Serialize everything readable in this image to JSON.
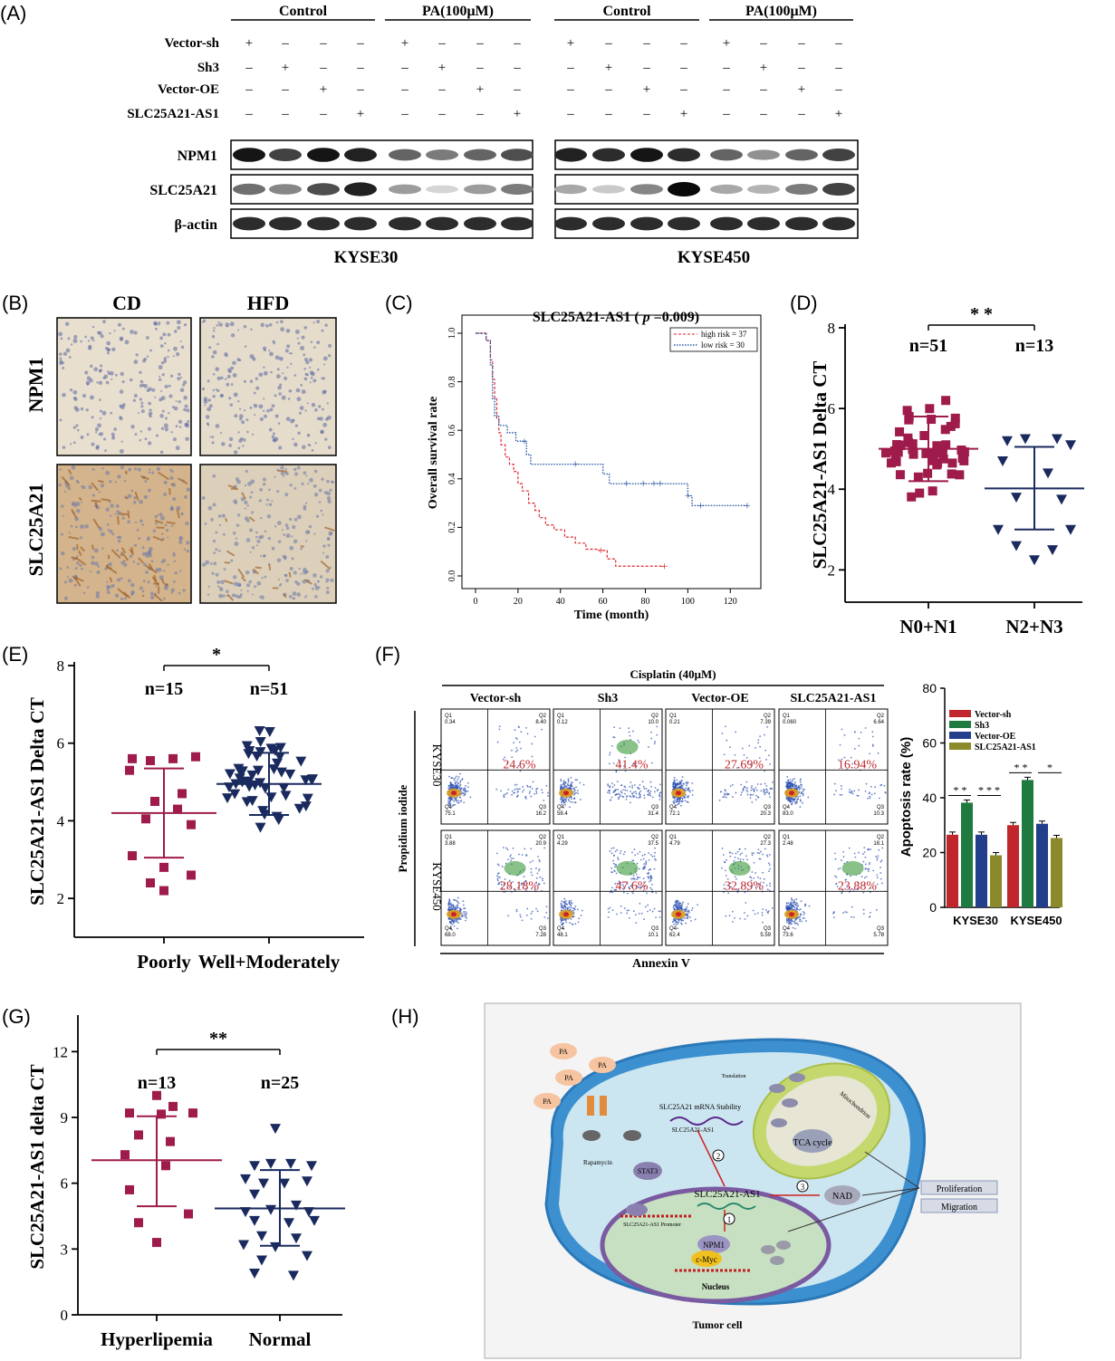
{
  "colors": {
    "red": "#9e1b4b",
    "navy": "#1a2a5e",
    "km_red": "#e0242b",
    "km_blue": "#2c5ca8",
    "bar_red": "#c0272d",
    "bar_green": "#1f7a3f",
    "bar_blue": "#233e8b",
    "bar_olive": "#8a8a2a"
  },
  "panel_labels": [
    "(A)",
    "(B)",
    "(C)",
    "(D)",
    "(E)",
    "(F)",
    "(G)",
    "(H)"
  ],
  "panelA": {
    "groups": [
      "Control",
      "PA(100μM)",
      "Control",
      "PA(100μM)"
    ],
    "rows": [
      {
        "label": "Vector-sh",
        "signs": [
          "+",
          "–",
          "–",
          "–",
          "+",
          "–",
          "–",
          "–",
          "+",
          "–",
          "–",
          "–",
          "+",
          "–",
          "–",
          "–"
        ]
      },
      {
        "label": "Sh3",
        "signs": [
          "–",
          "+",
          "–",
          "–",
          "–",
          "+",
          "–",
          "–",
          "–",
          "+",
          "–",
          "–",
          "–",
          "+",
          "–",
          "–"
        ]
      },
      {
        "label": "Vector-OE",
        "signs": [
          "–",
          "–",
          "+",
          "–",
          "–",
          "–",
          "+",
          "–",
          "–",
          "–",
          "+",
          "–",
          "–",
          "–",
          "+",
          "–"
        ]
      },
      {
        "label": "SLC25A21-AS1",
        "signs": [
          "–",
          "–",
          "–",
          "+",
          "–",
          "–",
          "–",
          "+",
          "–",
          "–",
          "–",
          "+",
          "–",
          "–",
          "–",
          "+"
        ]
      }
    ],
    "blots": [
      {
        "label": "NPM1",
        "intensity": [
          0.95,
          0.75,
          0.95,
          0.9,
          0.6,
          0.5,
          0.6,
          0.7,
          0.9,
          0.85,
          0.95,
          0.85,
          0.6,
          0.4,
          0.6,
          0.75
        ]
      },
      {
        "label": "SLC25A21",
        "intensity": [
          0.55,
          0.45,
          0.7,
          0.9,
          0.35,
          0.1,
          0.35,
          0.5,
          0.3,
          0.15,
          0.45,
          1.0,
          0.3,
          0.25,
          0.5,
          0.75
        ]
      },
      {
        "label": "β-actin",
        "intensity": [
          0.85,
          0.85,
          0.85,
          0.85,
          0.85,
          0.85,
          0.85,
          0.85,
          0.85,
          0.85,
          0.85,
          0.85,
          0.85,
          0.85,
          0.85,
          0.85
        ]
      }
    ],
    "cell_lines": [
      "KYSE30",
      "KYSE450"
    ]
  },
  "panelB": {
    "cols": [
      "CD",
      "HFD"
    ],
    "rows": [
      "NPM1",
      "SLC25A21"
    ]
  },
  "panelC": {
    "title_pre": "SLC25A21-AS1 ( ",
    "title_p": "p",
    "title_post": " =0.009)",
    "xlabel": "Time (month)",
    "ylabel": "Overall survival rate",
    "xticks": [
      "0",
      "20",
      "40",
      "60",
      "80",
      "100",
      "120"
    ],
    "yticks": [
      "0.0",
      "0.2",
      "0.4",
      "0.6",
      "0.8",
      "1.0"
    ],
    "legend": [
      "high risk = 37",
      "low risk = 30"
    ]
  },
  "panelD": {
    "ylabel": "SLC25A21-AS1 Delta CT",
    "yticks": [
      "2",
      "4",
      "6",
      "8"
    ],
    "groups": [
      "N0+N1",
      "N2+N3"
    ],
    "n": [
      "n=51",
      "n=13"
    ],
    "sig": "* *",
    "means": [
      5.0,
      4.02
    ],
    "sd_hi": [
      5.8,
      5.05
    ],
    "sd_lo": [
      4.2,
      3.0
    ]
  },
  "panelE": {
    "ylabel": "SLC25A21-AS1 Delta CT",
    "yticks": [
      "2",
      "4",
      "6",
      "8"
    ],
    "groups": [
      "Poorly",
      "Well+Moderately"
    ],
    "n": [
      "n=15",
      "n=51"
    ],
    "sig": "*",
    "means": [
      4.2,
      4.95
    ],
    "sd_hi": [
      5.35,
      5.75
    ],
    "sd_lo": [
      3.05,
      4.15
    ]
  },
  "panelF": {
    "title": "Cisplatin (40μM)",
    "cols": [
      "Vector-sh",
      "Sh3",
      "Vector-OE",
      "SLC25A21-AS1"
    ],
    "rows": [
      "KYSE30",
      "KYSE450"
    ],
    "ylabel": "Propidium iodide",
    "xlabel": "Annexin V",
    "percents": [
      [
        "24.6%",
        "41.4%",
        "27.69%",
        "16.94%"
      ],
      [
        "28.18%",
        "47.6%",
        "32.89%",
        "23.88%"
      ]
    ],
    "quads": [
      [
        [
          "0.34",
          "8.40",
          "75.1",
          "16.2"
        ],
        [
          "0.12",
          "10.0",
          "58.4",
          "31.4"
        ],
        [
          "0.21",
          "7.39",
          "72.1",
          "20.3"
        ],
        [
          "0.060",
          "6.64",
          "83.0",
          "10.3"
        ]
      ],
      [
        [
          "3.88",
          "20.9",
          "68.0",
          "7.28"
        ],
        [
          "4.29",
          "37.5",
          "48.1",
          "10.1"
        ],
        [
          "4.79",
          "27.3",
          "62.4",
          "5.59"
        ],
        [
          "2.48",
          "18.1",
          "73.6",
          "5.78"
        ]
      ]
    ],
    "bar": {
      "ylabel": "Apoptosis rate (%)",
      "yticks": [
        "0",
        "20",
        "40",
        "60",
        "80"
      ],
      "legend": [
        "Vector-sh",
        "Sh3",
        "Vector-OE",
        "SLC25A21-AS1"
      ],
      "categories": [
        "KYSE30",
        "KYSE450"
      ],
      "values": [
        [
          26.5,
          38.2,
          26.5,
          19
        ],
        [
          30,
          46.5,
          30.5,
          25.3
        ]
      ],
      "sig1": [
        "* *",
        "* *"
      ],
      "sig2": [
        "* * *",
        "*"
      ]
    }
  },
  "panelG": {
    "ylabel": "SLC25A21-AS1 delta CT",
    "yticks": [
      "0",
      "3",
      "6",
      "9",
      "12"
    ],
    "groups": [
      "Hyperlipemia",
      "Normal"
    ],
    "n": [
      "n=13",
      "n=25"
    ],
    "sig": "**",
    "means": [
      7.05,
      4.85
    ],
    "sd_hi": [
      9.05,
      6.6
    ],
    "sd_lo": [
      4.95,
      3.15
    ]
  },
  "panelH": {
    "labels": {
      "pa": "PA",
      "mrna": "SLC25A21 mRNA Stability",
      "as1_small": "SLC25A21-AS1",
      "rapamycin": "Rapamycin",
      "stat3": "STAT3",
      "as1": "SLC25A21-AS1",
      "promoter": "SLC25A21-AS1 Promoter",
      "npm1": "NPM1",
      "cmyc": "c-Myc",
      "nucleus": "Nucleus",
      "tca": "TCA cycle",
      "nad": "NAD",
      "proliferation": "Proliferation",
      "migration": "Migration",
      "tumor": "Tumor cell",
      "mito": "Mitochondrion",
      "translation": "Translation",
      "n1": "1",
      "n2": "2",
      "n3": "3"
    }
  }
}
